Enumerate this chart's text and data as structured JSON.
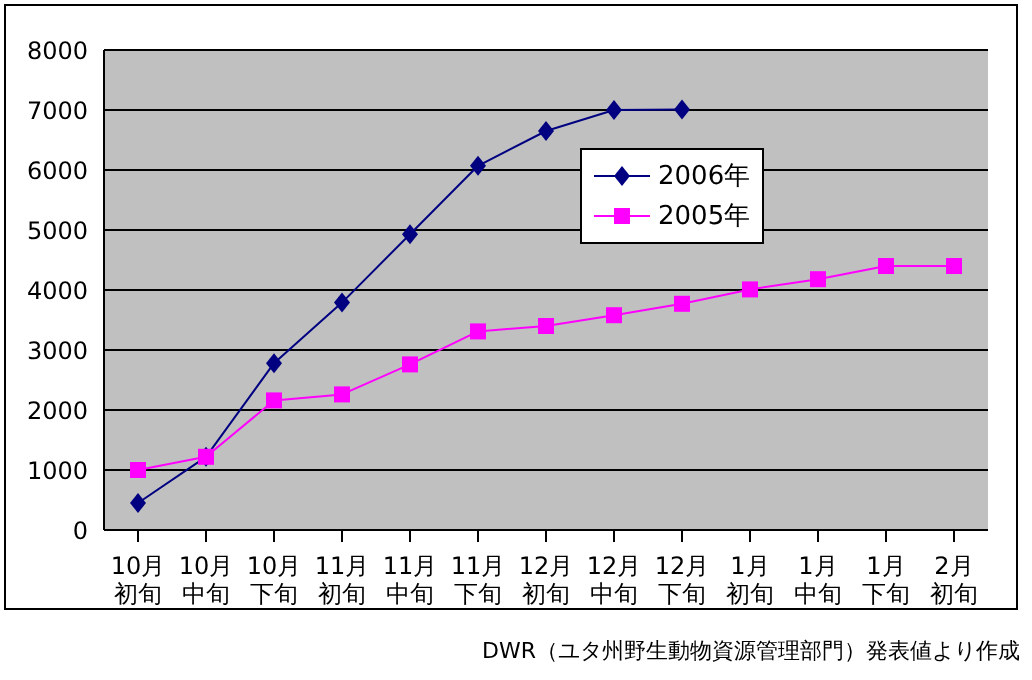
{
  "chart_data": {
    "type": "line",
    "categories": [
      "10月初旬",
      "10月中旬",
      "10月下旬",
      "11月初旬",
      "11月中旬",
      "11月下旬",
      "12月初旬",
      "12月中旬",
      "12月下旬",
      "1月初旬",
      "1月中旬",
      "1月下旬",
      "2月初旬"
    ],
    "series": [
      {
        "name": "2006年",
        "color": "#000080",
        "marker": "diamond",
        "values": [
          450,
          1220,
          2780,
          3790,
          4930,
          6070,
          6650,
          7000,
          7010,
          null,
          null,
          null,
          null
        ]
      },
      {
        "name": "2005年",
        "color": "#ff00ff",
        "marker": "square",
        "values": [
          1000,
          1220,
          2160,
          2260,
          2760,
          3310,
          3400,
          3580,
          3770,
          4010,
          4180,
          4400,
          4400
        ]
      }
    ],
    "ylim": [
      0,
      8000
    ],
    "yticks": [
      0,
      1000,
      2000,
      3000,
      4000,
      5000,
      6000,
      7000,
      8000
    ],
    "grid": "y",
    "legend": "right",
    "annotations": [
      "DWR（ユタ州野生動物資源管理部門）発表値より作成"
    ]
  }
}
